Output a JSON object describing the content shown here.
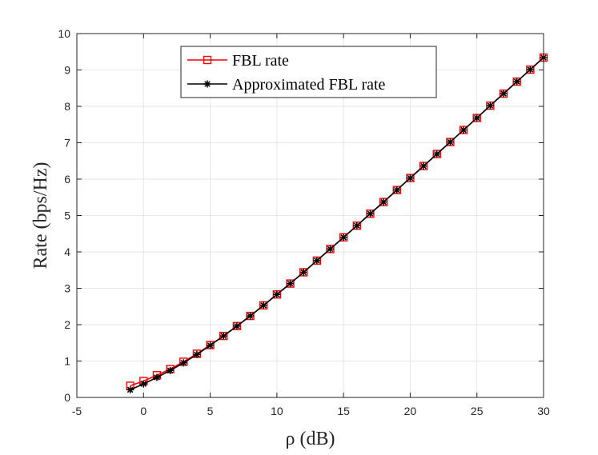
{
  "chart_data": {
    "type": "line",
    "xlabel": "ρ (dB)",
    "ylabel": "Rate (bps/Hz)",
    "xlim": [
      -5,
      30
    ],
    "ylim": [
      0,
      10
    ],
    "xticks": [
      -5,
      0,
      5,
      10,
      15,
      20,
      25,
      30
    ],
    "yticks": [
      0,
      1,
      2,
      3,
      4,
      5,
      6,
      7,
      8,
      9,
      10
    ],
    "grid": true,
    "legend_position": "top-center",
    "x": [
      -1,
      0,
      1,
      2,
      3,
      4,
      5,
      6,
      7,
      8,
      9,
      10,
      11,
      12,
      13,
      14,
      15,
      16,
      17,
      18,
      19,
      20,
      21,
      22,
      23,
      24,
      25,
      26,
      27,
      28,
      29,
      30
    ],
    "series": [
      {
        "name": "FBL rate",
        "color": "#ff0000",
        "marker": "square",
        "values": [
          0.32,
          0.45,
          0.61,
          0.78,
          0.98,
          1.2,
          1.44,
          1.69,
          1.96,
          2.24,
          2.53,
          2.83,
          3.13,
          3.44,
          3.76,
          4.08,
          4.4,
          4.72,
          5.05,
          5.37,
          5.7,
          6.03,
          6.36,
          6.69,
          7.02,
          7.35,
          7.68,
          8.02,
          8.35,
          8.68,
          9.01,
          9.34
        ]
      },
      {
        "name": "Approximated FBL rate",
        "color": "#000000",
        "marker": "asterisk",
        "values": [
          0.21,
          0.37,
          0.55,
          0.74,
          0.95,
          1.18,
          1.43,
          1.69,
          1.96,
          2.24,
          2.53,
          2.83,
          3.13,
          3.44,
          3.76,
          4.08,
          4.4,
          4.72,
          5.05,
          5.37,
          5.7,
          6.03,
          6.36,
          6.69,
          7.02,
          7.35,
          7.68,
          8.02,
          8.35,
          8.68,
          9.01,
          9.34
        ]
      }
    ]
  }
}
